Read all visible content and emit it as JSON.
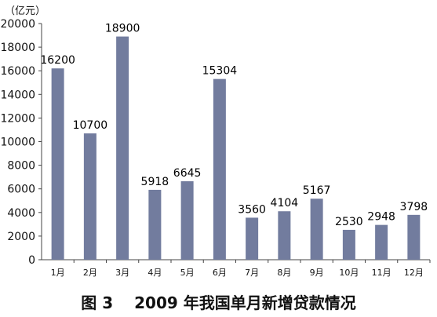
{
  "caption": "图 3　 2009 年我国单月新增贷款情况",
  "unit_label": "（亿元）",
  "chart_data": {
    "type": "bar",
    "title": "",
    "xlabel": "",
    "ylabel": "",
    "ylim": [
      0,
      20000
    ],
    "yticks": [
      0,
      2000,
      4000,
      6000,
      8000,
      10000,
      12000,
      14000,
      16000,
      18000,
      20000
    ],
    "grid": false,
    "legend": "none",
    "bar_color": "#727C9E",
    "categories": [
      "1月",
      "2月",
      "3月",
      "4月",
      "5月",
      "6月",
      "7月",
      "8月",
      "9月",
      "10月",
      "11月",
      "12月"
    ],
    "values": [
      16200,
      10700,
      18900,
      5918,
      6645,
      15304,
      3560,
      4104,
      5167,
      2530,
      2948,
      3798
    ]
  }
}
